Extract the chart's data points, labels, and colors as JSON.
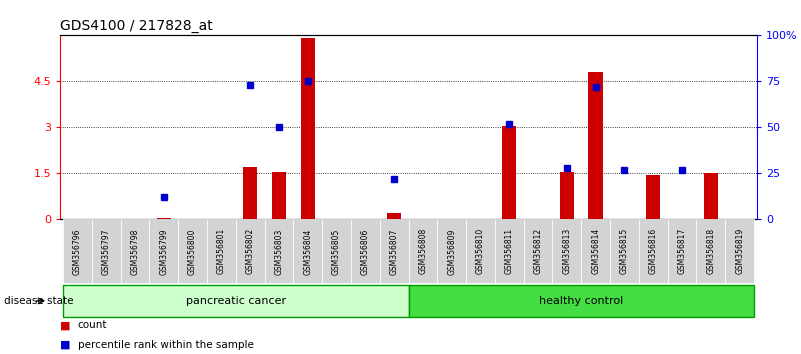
{
  "title": "GDS4100 / 217828_at",
  "samples": [
    "GSM356796",
    "GSM356797",
    "GSM356798",
    "GSM356799",
    "GSM356800",
    "GSM356801",
    "GSM356802",
    "GSM356803",
    "GSM356804",
    "GSM356805",
    "GSM356806",
    "GSM356807",
    "GSM356808",
    "GSM356809",
    "GSM356810",
    "GSM356811",
    "GSM356812",
    "GSM356813",
    "GSM356814",
    "GSM356815",
    "GSM356816",
    "GSM356817",
    "GSM356818",
    "GSM356819"
  ],
  "count_values": [
    0,
    0,
    0,
    0.05,
    0,
    0,
    1.7,
    1.55,
    5.9,
    0,
    0,
    0.2,
    0,
    0,
    0,
    3.05,
    0,
    1.55,
    4.8,
    0,
    1.45,
    0,
    1.5,
    0
  ],
  "percentile_values": [
    0,
    0,
    0,
    12,
    0,
    0,
    73,
    50,
    75,
    0,
    0,
    22,
    0,
    0,
    0,
    52,
    0,
    28,
    72,
    27,
    0,
    27,
    0,
    0
  ],
  "group_labels": [
    "pancreatic cancer",
    "healthy control"
  ],
  "group_split": 12,
  "ylim_left": [
    0,
    6
  ],
  "ylim_right": [
    0,
    100
  ],
  "yticks_left": [
    0,
    1.5,
    3.0,
    4.5
  ],
  "ytick_labels_left": [
    "0",
    "1.5",
    "3",
    "4.5"
  ],
  "yticks_right": [
    0,
    25,
    50,
    75,
    100
  ],
  "ytick_labels_right": [
    "0",
    "25",
    "50",
    "75",
    "100%"
  ],
  "bar_color": "#cc0000",
  "dot_color": "#0000cc",
  "sample_bg_color": "#cccccc",
  "pc_color": "#ccffcc",
  "hc_color": "#44dd44",
  "legend_count_label": "count",
  "legend_pct_label": "percentile rank within the sample",
  "disease_state_label": "disease state"
}
